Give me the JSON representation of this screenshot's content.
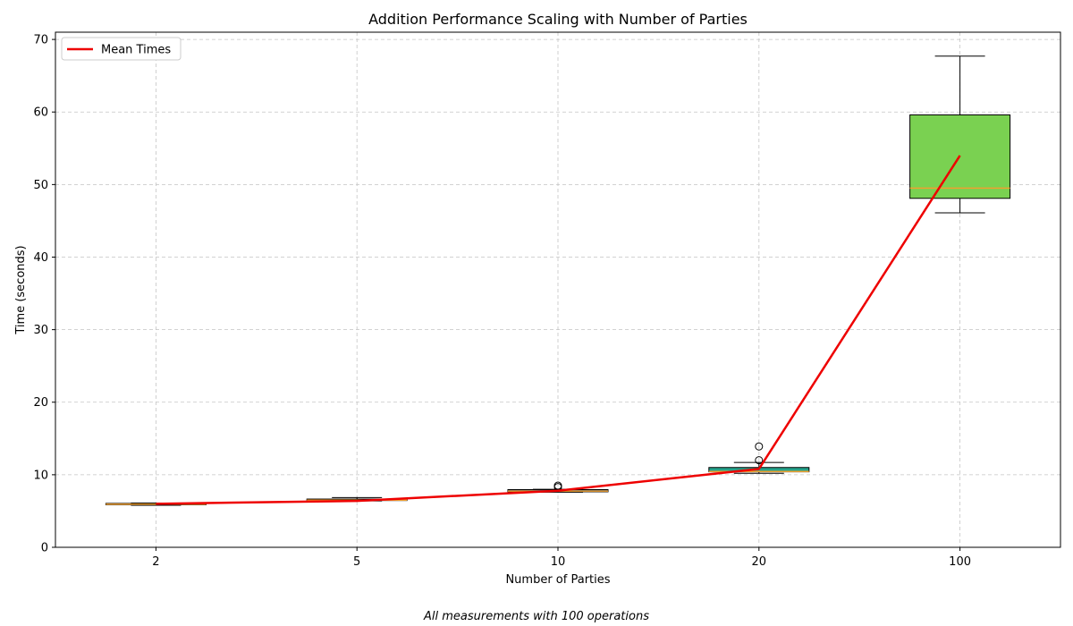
{
  "chart_data": {
    "type": "box",
    "title": "Addition Performance Scaling with Number of Parties",
    "xlabel": "Number of Parties",
    "ylabel": "Time (seconds)",
    "footnote": "All measurements with 100 operations",
    "categories": [
      "2",
      "5",
      "10",
      "20",
      "100"
    ],
    "ylim": [
      0,
      71
    ],
    "yticks": [
      0,
      10,
      20,
      30,
      40,
      50,
      60,
      70
    ],
    "grid": true,
    "legend_position": "top-left",
    "boxes": [
      {
        "category": "2",
        "whisker_low": 5.8,
        "q1": 5.9,
        "median": 5.95,
        "q3": 6.05,
        "whisker_high": 6.1,
        "outliers": [],
        "color": "#e07a22"
      },
      {
        "category": "5",
        "whisker_low": 6.4,
        "q1": 6.45,
        "median": 6.5,
        "q3": 6.65,
        "whisker_high": 6.85,
        "outliers": [],
        "color": "#555577"
      },
      {
        "category": "10",
        "whisker_low": 7.6,
        "q1": 7.65,
        "median": 7.75,
        "q3": 7.95,
        "whisker_high": 8.0,
        "outliers": [
          8.3,
          8.5
        ],
        "color": "#2f5e8e"
      },
      {
        "category": "20",
        "whisker_low": 10.2,
        "q1": 10.4,
        "median": 10.45,
        "q3": 11.0,
        "whisker_high": 11.7,
        "outliers": [
          12.0,
          13.9
        ],
        "color": "#26a38a"
      },
      {
        "category": "100",
        "whisker_low": 46.1,
        "q1": 48.1,
        "median": 49.5,
        "q3": 59.6,
        "whisker_high": 67.7,
        "outliers": [],
        "color": "#7ad151"
      }
    ],
    "series": [
      {
        "name": "Mean Times",
        "type": "line",
        "color": "#ee0000",
        "values": [
          6.0,
          6.4,
          7.8,
          10.8,
          54.0
        ]
      }
    ],
    "median_color": "#f0a030"
  }
}
